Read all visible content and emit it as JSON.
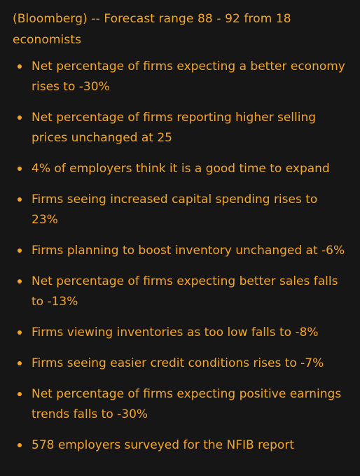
{
  "article": {
    "lead": "(Bloomberg) -- Forecast range 88 - 92 from 18 economists",
    "bullets": [
      "Net percentage of firms expecting a better economy rises to -30%",
      "Net percentage of firms reporting higher selling prices unchanged at 25",
      "4% of employers think it is a good time to expand",
      "Firms seeing increased capital spending rises to 23%",
      "Firms planning to boost inventory unchanged at -6%",
      "Net percentage of firms expecting better sales falls to -13%",
      "Firms viewing inventories as too low falls to -8%",
      "Firms seeing easier credit conditions rises to -7%",
      "Net percentage of firms expecting positive earnings trends falls to -30%",
      "578 employers surveyed for the NFIB report"
    ]
  },
  "colors": {
    "background": "#161616",
    "text": "#f5a623"
  }
}
